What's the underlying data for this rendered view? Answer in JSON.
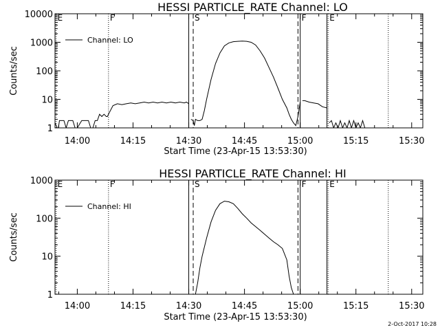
{
  "footer": {
    "date": "2-Oct-2017 10:28"
  },
  "chart_data": [
    {
      "type": "line",
      "title": "HESSI PARTICLE_RATE Channel: LO",
      "xlabel": "Start Time (23-Apr-15 13:53:30)",
      "ylabel": "Counts/sec",
      "yscale": "log",
      "xlim": [
        13.9,
        15.55
      ],
      "ylim": [
        1,
        10000
      ],
      "xticks": [
        {
          "t": 14.0,
          "label": "14:00"
        },
        {
          "t": 14.25,
          "label": "14:15"
        },
        {
          "t": 14.5,
          "label": "14:30"
        },
        {
          "t": 14.75,
          "label": "14:45"
        },
        {
          "t": 15.0,
          "label": "15:00"
        },
        {
          "t": 15.25,
          "label": "15:15"
        },
        {
          "t": 15.5,
          "label": "15:30"
        }
      ],
      "yticks": [
        {
          "v": 1,
          "label": "1"
        },
        {
          "v": 10,
          "label": "10"
        },
        {
          "v": 100,
          "label": "100"
        },
        {
          "v": 1000,
          "label": "1000"
        },
        {
          "v": 10000,
          "label": "10000"
        }
      ],
      "legend": {
        "label": "Channel: LO",
        "position": "top-left"
      },
      "markers": [
        {
          "t": 13.905,
          "label": "E",
          "style": "dotted"
        },
        {
          "t": 14.14,
          "label": "F",
          "style": "dotted"
        },
        {
          "t": 14.5,
          "label": "",
          "style": "solid"
        },
        {
          "t": 14.52,
          "label": "S",
          "style": "dashed"
        },
        {
          "t": 14.99,
          "label": "",
          "style": "dashed"
        },
        {
          "t": 15.0,
          "label": "F",
          "style": "solid"
        },
        {
          "t": 15.12,
          "label": "",
          "style": "solid"
        },
        {
          "t": 15.125,
          "label": "E",
          "style": "dotted"
        },
        {
          "t": 15.395,
          "label": "",
          "style": "dotted"
        }
      ],
      "series": [
        {
          "gaps": [
            [
              14.5,
              14.51
            ],
            [
              15.0,
              15.001
            ],
            [
              15.12,
              15.13
            ]
          ],
          "x": [
            13.9,
            13.91,
            13.915,
            13.92,
            13.93,
            13.94,
            13.95,
            13.96,
            13.98,
            13.99,
            14.0,
            14.02,
            14.04,
            14.05,
            14.06,
            14.07,
            14.08,
            14.09,
            14.1,
            14.11,
            14.12,
            14.13,
            14.135,
            14.14,
            14.16,
            14.18,
            14.2,
            14.22,
            14.24,
            14.26,
            14.28,
            14.3,
            14.32,
            14.34,
            14.36,
            14.38,
            14.4,
            14.42,
            14.44,
            14.46,
            14.48,
            14.49,
            14.5,
            14.51,
            14.52,
            14.525,
            14.53,
            14.54,
            14.55,
            14.56,
            14.57,
            14.58,
            14.6,
            14.62,
            14.64,
            14.66,
            14.68,
            14.7,
            14.72,
            14.74,
            14.76,
            14.78,
            14.8,
            14.82,
            14.84,
            14.86,
            14.88,
            14.9,
            14.92,
            14.94,
            14.95,
            14.96,
            14.97,
            14.98,
            14.99,
            15.0,
            15.01,
            15.02,
            15.04,
            15.06,
            15.08,
            15.1,
            15.12,
            15.13,
            15.14,
            15.15,
            15.16,
            15.17,
            15.18,
            15.19,
            15.2,
            15.21,
            15.22,
            15.23,
            15.24,
            15.25,
            15.26,
            15.27,
            15.28,
            15.29,
            15.3,
            15.32,
            15.34,
            15.36,
            15.38,
            15.4,
            15.42,
            15.44,
            15.46,
            15.48,
            15.5,
            15.52,
            15.54
          ],
          "values": [
            1.5,
            1,
            1,
            1.8,
            1.8,
            1.8,
            1,
            1.8,
            1.8,
            1,
            1,
            1.8,
            1.8,
            1.8,
            1,
            1,
            1.8,
            1.8,
            3,
            2.5,
            3,
            2.5,
            2.5,
            3,
            6,
            7,
            6.5,
            7,
            7.5,
            7,
            7.5,
            8,
            7.5,
            8,
            7.5,
            8,
            7.5,
            8,
            7.5,
            8,
            7.5,
            8,
            7,
            2,
            1.8,
            1.2,
            2,
            1.8,
            1.8,
            2,
            4,
            10,
            50,
            180,
            420,
            750,
            950,
            1050,
            1080,
            1100,
            1080,
            1000,
            800,
            500,
            280,
            130,
            60,
            25,
            10,
            5,
            3,
            2,
            1.5,
            1.2,
            2.5,
            8,
            9,
            9,
            8,
            7.5,
            7,
            5.5,
            5,
            1.5,
            1.8,
            1,
            1.5,
            1,
            1.8,
            1,
            1.5,
            1,
            1.8,
            1,
            1.8,
            1,
            1.5,
            1,
            1.8,
            1,
            1,
            1,
            1,
            1,
            1,
            1,
            1,
            1,
            1,
            1,
            1,
            1,
            1
          ]
        }
      ]
    },
    {
      "type": "line",
      "title": "HESSI PARTICLE_RATE Channel: HI",
      "xlabel": "Start Time (23-Apr-15 13:53:30)",
      "ylabel": "Counts/sec",
      "yscale": "log",
      "xlim": [
        13.9,
        15.55
      ],
      "ylim": [
        1,
        1000
      ],
      "xticks": [
        {
          "t": 14.0,
          "label": "14:00"
        },
        {
          "t": 14.25,
          "label": "14:15"
        },
        {
          "t": 14.5,
          "label": "14:30"
        },
        {
          "t": 14.75,
          "label": "14:45"
        },
        {
          "t": 15.0,
          "label": "15:00"
        },
        {
          "t": 15.25,
          "label": "15:15"
        },
        {
          "t": 15.5,
          "label": "15:30"
        }
      ],
      "yticks": [
        {
          "v": 1,
          "label": "1"
        },
        {
          "v": 10,
          "label": "10"
        },
        {
          "v": 100,
          "label": "100"
        },
        {
          "v": 1000,
          "label": "1000"
        }
      ],
      "legend": {
        "label": "Channel: HI",
        "position": "top-left"
      },
      "markers": [
        {
          "t": 13.905,
          "label": "E",
          "style": "dotted"
        },
        {
          "t": 14.14,
          "label": "F",
          "style": "dotted"
        },
        {
          "t": 14.5,
          "label": "",
          "style": "solid"
        },
        {
          "t": 14.52,
          "label": "S",
          "style": "dashed"
        },
        {
          "t": 14.99,
          "label": "",
          "style": "dashed"
        },
        {
          "t": 15.0,
          "label": "F",
          "style": "solid"
        },
        {
          "t": 15.12,
          "label": "",
          "style": "solid"
        },
        {
          "t": 15.125,
          "label": "E",
          "style": "dotted"
        },
        {
          "t": 15.395,
          "label": "",
          "style": "dotted"
        }
      ],
      "series": [
        {
          "gaps": [],
          "x": [
            14.53,
            14.54,
            14.55,
            14.56,
            14.58,
            14.6,
            14.62,
            14.64,
            14.66,
            14.68,
            14.7,
            14.72,
            14.74,
            14.76,
            14.78,
            14.8,
            14.82,
            14.84,
            14.86,
            14.88,
            14.9,
            14.92,
            14.94,
            14.95,
            14.96,
            14.97
          ],
          "values": [
            1,
            2,
            5,
            10,
            30,
            80,
            160,
            240,
            280,
            270,
            240,
            180,
            130,
            100,
            75,
            60,
            48,
            38,
            30,
            24,
            20,
            16,
            8,
            3,
            1.5,
            1
          ]
        }
      ]
    }
  ]
}
